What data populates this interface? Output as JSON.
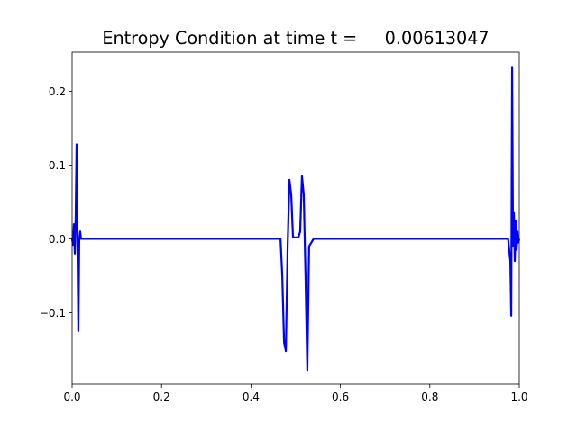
{
  "chart_data": {
    "type": "line",
    "title": "Entropy Condition at time t =     0.00613047",
    "xlabel": "",
    "ylabel": "",
    "xlim": [
      0.0,
      1.0
    ],
    "ylim": [
      -0.197,
      0.253
    ],
    "x_ticks": [
      0.0,
      0.2,
      0.4,
      0.6,
      0.8,
      1.0
    ],
    "x_tick_labels": [
      "0.0",
      "0.2",
      "0.4",
      "0.6",
      "0.8",
      "1.0"
    ],
    "y_ticks": [
      -0.1,
      0.0,
      0.1,
      0.2
    ],
    "y_tick_labels": [
      "−0.1",
      "0.0",
      "0.1",
      "0.2"
    ],
    "grid": false,
    "legend": "none",
    "colors": {
      "line": "#0000ff",
      "axes": "#000000",
      "background": "#ffffff"
    },
    "series": [
      {
        "x": [
          0.0,
          0.002,
          0.004,
          0.006,
          0.008,
          0.01,
          0.012,
          0.014,
          0.016,
          0.018,
          0.02,
          0.03,
          0.1,
          0.2,
          0.3,
          0.4,
          0.46,
          0.466,
          0.47,
          0.474,
          0.478,
          0.482,
          0.486,
          0.49,
          0.494,
          0.498,
          0.502,
          0.506,
          0.51,
          0.514,
          0.518,
          0.522,
          0.526,
          0.53,
          0.54,
          0.6,
          0.7,
          0.8,
          0.9,
          0.97,
          0.975,
          0.98,
          0.982,
          0.984,
          0.986,
          0.988,
          0.99,
          0.992,
          0.994,
          0.996,
          0.998,
          1.0
        ],
        "y": [
          0.0,
          -0.008,
          0.02,
          -0.02,
          0.03,
          0.128,
          -0.01,
          -0.125,
          0.0,
          0.01,
          0.0,
          0.0,
          0.0,
          0.0,
          0.0,
          0.0,
          0.0,
          0.0,
          -0.05,
          -0.14,
          -0.152,
          -0.01,
          0.08,
          0.06,
          0.002,
          0.002,
          0.002,
          0.002,
          0.01,
          0.085,
          0.06,
          -0.05,
          -0.178,
          -0.01,
          0.0,
          0.0,
          0.0,
          0.0,
          0.0,
          0.0,
          0.0,
          -0.03,
          -0.104,
          0.233,
          -0.01,
          0.035,
          -0.03,
          0.025,
          -0.015,
          0.01,
          -0.005,
          0.0
        ]
      }
    ]
  }
}
